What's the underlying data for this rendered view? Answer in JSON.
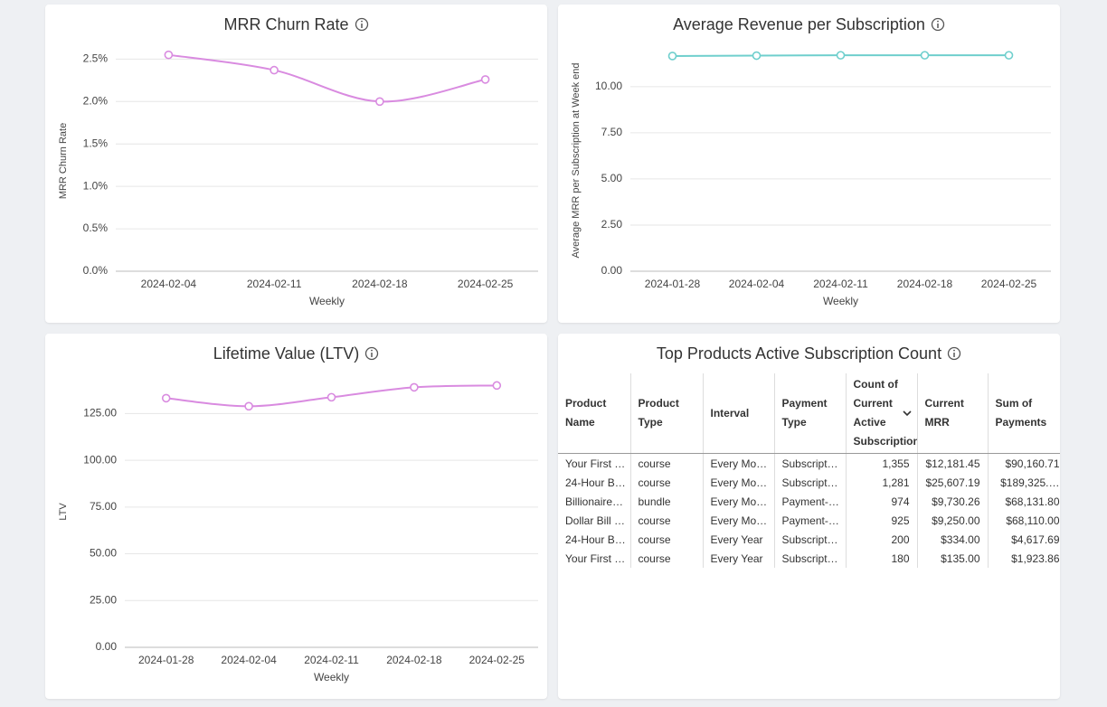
{
  "chart_data": [
    {
      "type": "line",
      "title": "MRR Churn Rate",
      "x_label": "Weekly",
      "y_label": "MRR Churn Rate",
      "categories": [
        "2024-02-04",
        "2024-02-11",
        "2024-02-18",
        "2024-02-25"
      ],
      "values": [
        2.55,
        2.37,
        2.0,
        2.26
      ],
      "color": "#d98be0",
      "smooth": true,
      "ylim": [
        0,
        2.6
      ],
      "yticks": [
        {
          "value": 0,
          "label": "0.0%"
        },
        {
          "value": 0.5,
          "label": "0.5%"
        },
        {
          "value": 1,
          "label": "1.0%"
        },
        {
          "value": 1.5,
          "label": "1.5%"
        },
        {
          "value": 2,
          "label": "2.0%"
        },
        {
          "value": 2.5,
          "label": "2.5%"
        }
      ],
      "grid": true
    },
    {
      "type": "line",
      "title": "Average Revenue per Subscription",
      "x_label": "Weekly",
      "y_label": "Average MRR per Subscription at Week end",
      "categories": [
        "2024-01-28",
        "2024-02-04",
        "2024-02-11",
        "2024-02-18",
        "2024-02-25"
      ],
      "values": [
        11.66,
        11.68,
        11.7,
        11.7,
        11.7
      ],
      "color": "#6fcfcd",
      "smooth": false,
      "ylim": [
        0,
        12
      ],
      "yticks": [
        {
          "value": 0,
          "label": "0.00"
        },
        {
          "value": 2.5,
          "label": "2.50"
        },
        {
          "value": 5,
          "label": "5.00"
        },
        {
          "value": 7.5,
          "label": "7.50"
        },
        {
          "value": 10,
          "label": "10.00"
        }
      ],
      "grid": true
    },
    {
      "type": "line",
      "title": "Lifetime Value (LTV)",
      "x_label": "Weekly",
      "y_label": "LTV",
      "categories": [
        "2024-01-28",
        "2024-02-04",
        "2024-02-11",
        "2024-02-18",
        "2024-02-25"
      ],
      "values": [
        133.2,
        128.9,
        133.7,
        139,
        140
      ],
      "color": "#d98be0",
      "smooth": true,
      "ylim": [
        0,
        145
      ],
      "yticks": [
        {
          "value": 0,
          "label": "0.00"
        },
        {
          "value": 25,
          "label": "25.00"
        },
        {
          "value": 50,
          "label": "50.00"
        },
        {
          "value": 75,
          "label": "75.00"
        },
        {
          "value": 100,
          "label": "100.00"
        },
        {
          "value": 125,
          "label": "125.00"
        }
      ],
      "grid": true
    }
  ],
  "table": {
    "title": "Top Products Active Subscription Count",
    "columns": [
      "Product Name",
      "Product Type",
      "Interval",
      "Payment Type",
      "Count of Current Active Subscriptions",
      "Current MRR",
      "Sum of Payments"
    ],
    "rows": [
      [
        "Your First …",
        "course",
        "Every Mo…",
        "Subscript…",
        "1,355",
        "$12,181.45",
        "$90,160.71"
      ],
      [
        "24-Hour B…",
        "course",
        "Every Mo…",
        "Subscript…",
        "1,281",
        "$25,607.19",
        "$189,325.…"
      ],
      [
        "Billionaire…",
        "bundle",
        "Every Mo…",
        "Payment-…",
        "974",
        "$9,730.26",
        "$68,131.80"
      ],
      [
        "Dollar Bill …",
        "course",
        "Every Mo…",
        "Payment-…",
        "925",
        "$9,250.00",
        "$68,110.00"
      ],
      [
        "24-Hour B…",
        "course",
        "Every Year",
        "Subscript…",
        "200",
        "$334.00",
        "$4,617.69"
      ],
      [
        "Your First …",
        "course",
        "Every Year",
        "Subscript…",
        "180",
        "$135.00",
        "$1,923.86"
      ]
    ]
  }
}
